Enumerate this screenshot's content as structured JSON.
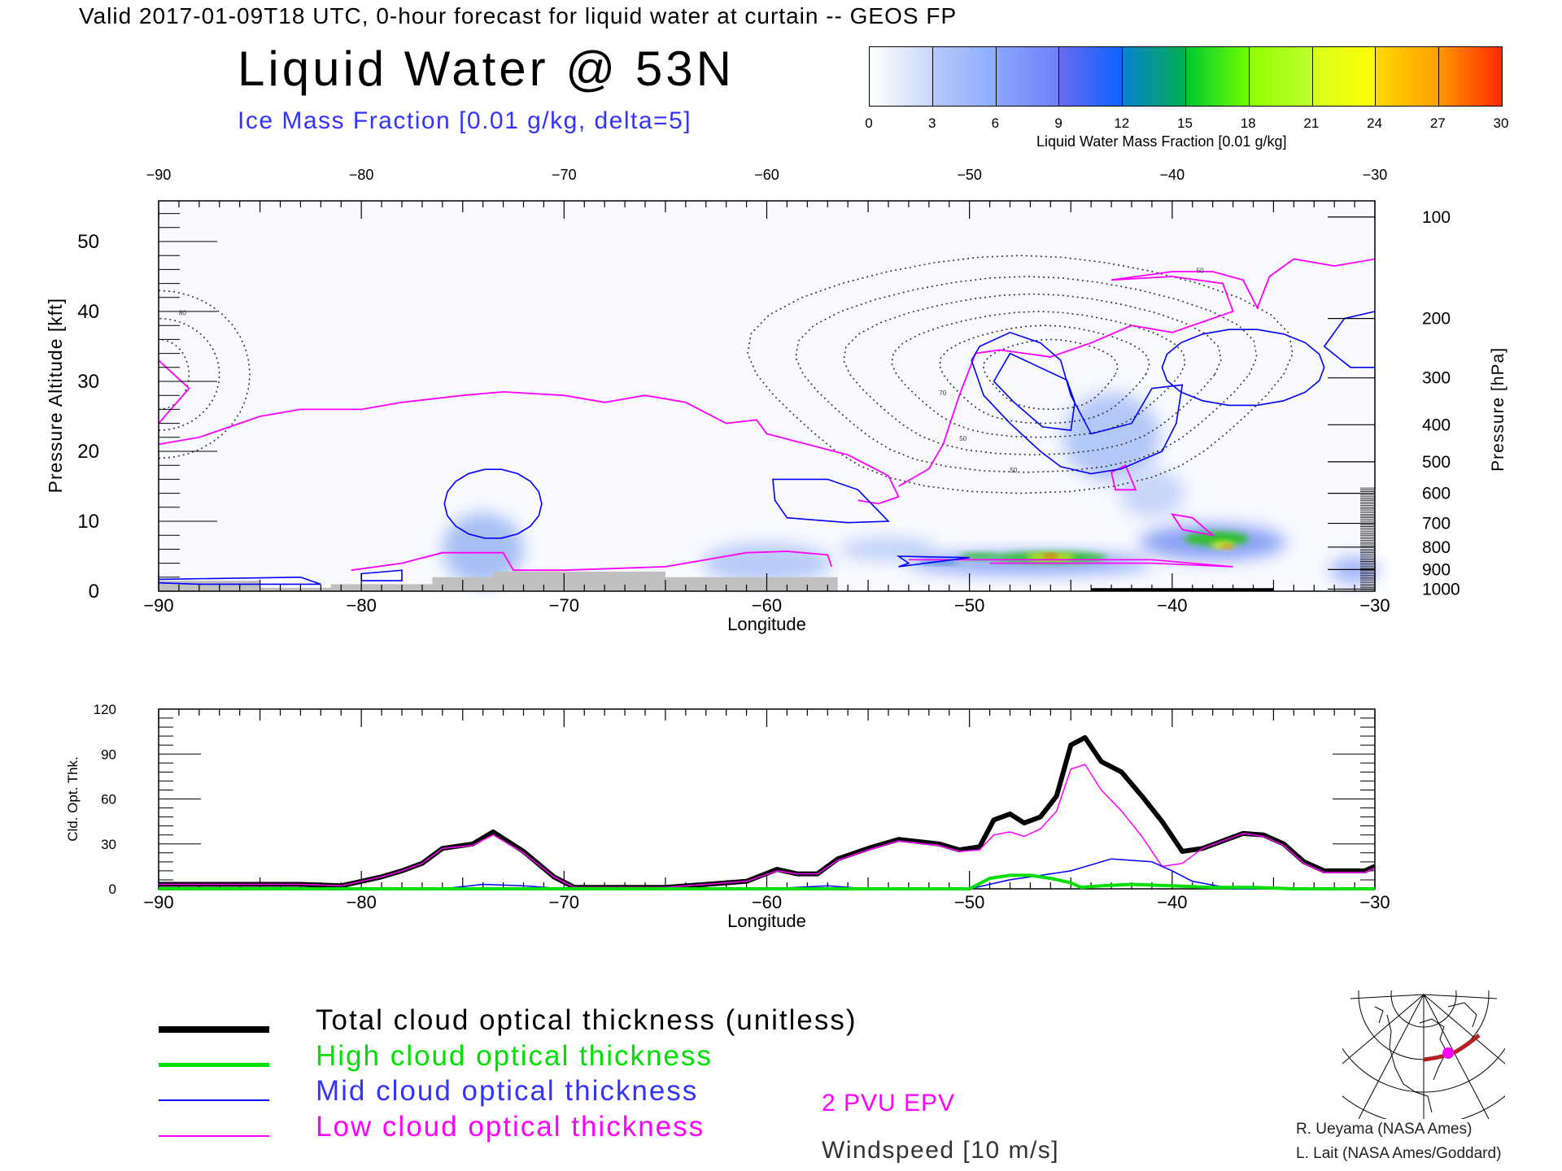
{
  "header": {
    "title": "Valid 2017-01-09T18 UTC, 0-hour forecast for liquid water at curtain -- GEOS FP",
    "main_title": "Liquid Water @ 53N",
    "subtitle": "Ice Mass Fraction [0.01 g/kg, delta=5]"
  },
  "colorbar": {
    "ticks": [
      "0",
      "3",
      "6",
      "9",
      "12",
      "15",
      "18",
      "21",
      "24",
      "27",
      "30"
    ],
    "caption": "Liquid Water Mass Fraction [0.01 g/kg]",
    "colors": [
      [
        "#ffffff",
        "#c8d6fa"
      ],
      [
        "#b8c8fc",
        "#8aaefc"
      ],
      [
        "#8aa6fc",
        "#7080f8"
      ],
      [
        "#6a6af0",
        "#0a64ff"
      ],
      [
        "#0a80d0",
        "#00b050"
      ],
      [
        "#00c830",
        "#70ff00"
      ],
      [
        "#90ff00",
        "#c0ff30"
      ],
      [
        "#d8ff20",
        "#ffff00"
      ],
      [
        "#ffd800",
        "#ffa000"
      ],
      [
        "#ff9800",
        "#ff2800"
      ]
    ]
  },
  "chart_data": [
    {
      "type": "heatmap",
      "title": "Liquid Water @ 53N",
      "xlabel": "Longitude",
      "ylabel": "Pressure Altitude [kft]",
      "y2label": "Pressure [hPa]",
      "xlim": [
        -90,
        -30
      ],
      "ylim": [
        0,
        56
      ],
      "x_ticks": [
        "-90",
        "-80",
        "-70",
        "-60",
        "-50",
        "-40",
        "-30"
      ],
      "y_ticks": [
        "0",
        "10",
        "20",
        "30",
        "40",
        "50"
      ],
      "pressure_ticks": [
        {
          "label": "100",
          "alt": 53.5
        },
        {
          "label": "200",
          "alt": 39
        },
        {
          "label": "300",
          "alt": 30.5
        },
        {
          "label": "400",
          "alt": 23.8
        },
        {
          "label": "500",
          "alt": 18.5
        },
        {
          "label": "600",
          "alt": 14
        },
        {
          "label": "700",
          "alt": 9.7
        },
        {
          "label": "800",
          "alt": 6.3
        },
        {
          "label": "900",
          "alt": 3.1
        },
        {
          "label": "1000",
          "alt": 0.3
        }
      ],
      "contour_labels": [
        "50",
        "50",
        "50",
        "70",
        "80"
      ]
    },
    {
      "type": "line",
      "xlabel": "Longitude",
      "ylabel": "Cld. Opt. Thk.",
      "xlim": [
        -90,
        -30
      ],
      "ylim": [
        0,
        120
      ],
      "x_ticks": [
        "-90",
        "-80",
        "-70",
        "-60",
        "-50",
        "-40",
        "-30"
      ],
      "y_ticks": [
        "0",
        "30",
        "60",
        "90",
        "120"
      ],
      "series": [
        {
          "name": "Total cloud optical thickness (unitless)",
          "color": "#000000",
          "width": 6,
          "x": [
            -90,
            -83,
            -81,
            -79,
            -78,
            -77,
            -76,
            -74.5,
            -73.5,
            -72,
            -70.5,
            -69.5,
            -65,
            -61,
            -59.5,
            -58.5,
            -57.5,
            -56.5,
            -55,
            -53.5,
            -51.5,
            -50.5,
            -49.5,
            -48.8,
            -48,
            -47.3,
            -46.5,
            -45.7,
            -45,
            -44.3,
            -43.5,
            -42.5,
            -41.5,
            -40.5,
            -39.5,
            -38.5,
            -37.5,
            -36.5,
            -35.5,
            -34.5,
            -33.5,
            -32.5,
            -31.5,
            -30.5,
            -30
          ],
          "y": [
            3,
            3,
            2,
            8,
            12,
            17,
            27,
            30,
            38,
            25,
            8,
            1,
            1,
            5,
            13,
            10,
            10,
            20,
            27,
            33,
            30,
            26,
            28,
            46,
            50,
            44,
            48,
            62,
            96,
            101,
            85,
            78,
            62,
            45,
            25,
            27,
            32,
            37,
            36,
            30,
            18,
            12,
            12,
            12,
            15
          ]
        },
        {
          "name": "High cloud optical thickness",
          "color": "#00e000",
          "width": 4,
          "x": [
            -90,
            -60,
            -50,
            -49,
            -48,
            -47,
            -46,
            -45,
            -44.5,
            -43.5,
            -42,
            -40,
            -38,
            -36,
            -34,
            -30
          ],
          "y": [
            0,
            0,
            0,
            7,
            9,
            9,
            7,
            4,
            1,
            2,
            3,
            2,
            1,
            1,
            0,
            0
          ]
        },
        {
          "name": "Mid cloud optical thickness",
          "color": "#0000ff",
          "width": 1.5,
          "x": [
            -90,
            -76,
            -74,
            -72,
            -70,
            -60,
            -57,
            -55,
            -50,
            -48,
            -46,
            -45,
            -43,
            -41,
            -40,
            -39,
            -37,
            -30
          ],
          "y": [
            0,
            0,
            3,
            2,
            0,
            0,
            2,
            0,
            0,
            6,
            10,
            12,
            20,
            18,
            12,
            5,
            0,
            0
          ]
        },
        {
          "name": "Low cloud optical thickness",
          "color": "#ff00ff",
          "width": 1.5,
          "x": [
            -90,
            -83,
            -81,
            -79,
            -78,
            -77,
            -76,
            -74.5,
            -73.5,
            -72,
            -70.5,
            -69.5,
            -65,
            -61,
            -59.5,
            -58.5,
            -57.5,
            -56.5,
            -55,
            -53.5,
            -51.5,
            -50.5,
            -49.5,
            -48.8,
            -48,
            -47.3,
            -46.5,
            -45.7,
            -45,
            -44.3,
            -43.5,
            -42.5,
            -41.5,
            -40.5,
            -39.5,
            -38.5,
            -37.5,
            -36.5,
            -35.5,
            -34.5,
            -33.5,
            -32.5,
            -31.5,
            -30.5,
            -30
          ],
          "y": [
            3,
            3,
            2,
            8,
            12,
            17,
            27,
            29,
            36,
            24,
            8,
            1,
            1,
            5,
            12,
            10,
            10,
            19,
            26,
            32,
            29,
            25,
            26,
            36,
            38,
            35,
            40,
            52,
            80,
            83,
            66,
            52,
            35,
            15,
            17,
            27,
            32,
            37,
            35,
            29,
            17,
            11,
            11,
            11,
            14
          ]
        }
      ]
    }
  ],
  "legend": {
    "total": "Total cloud optical thickness (unitless)",
    "high": "High cloud optical thickness",
    "mid": "Mid cloud optical thickness",
    "low": "Low cloud optical thickness",
    "epv": "2 PVU EPV",
    "windspeed": "Windspeed [10 m/s]"
  },
  "credits": {
    "line1": "R. Ueyama (NASA Ames)",
    "line2": "L. Lait (NASA Ames/Goddard)"
  },
  "colors": {
    "epv": "#ff00ff",
    "ice": "#0000ff",
    "terrain": "#c0c0c0",
    "track": "#b22222"
  }
}
